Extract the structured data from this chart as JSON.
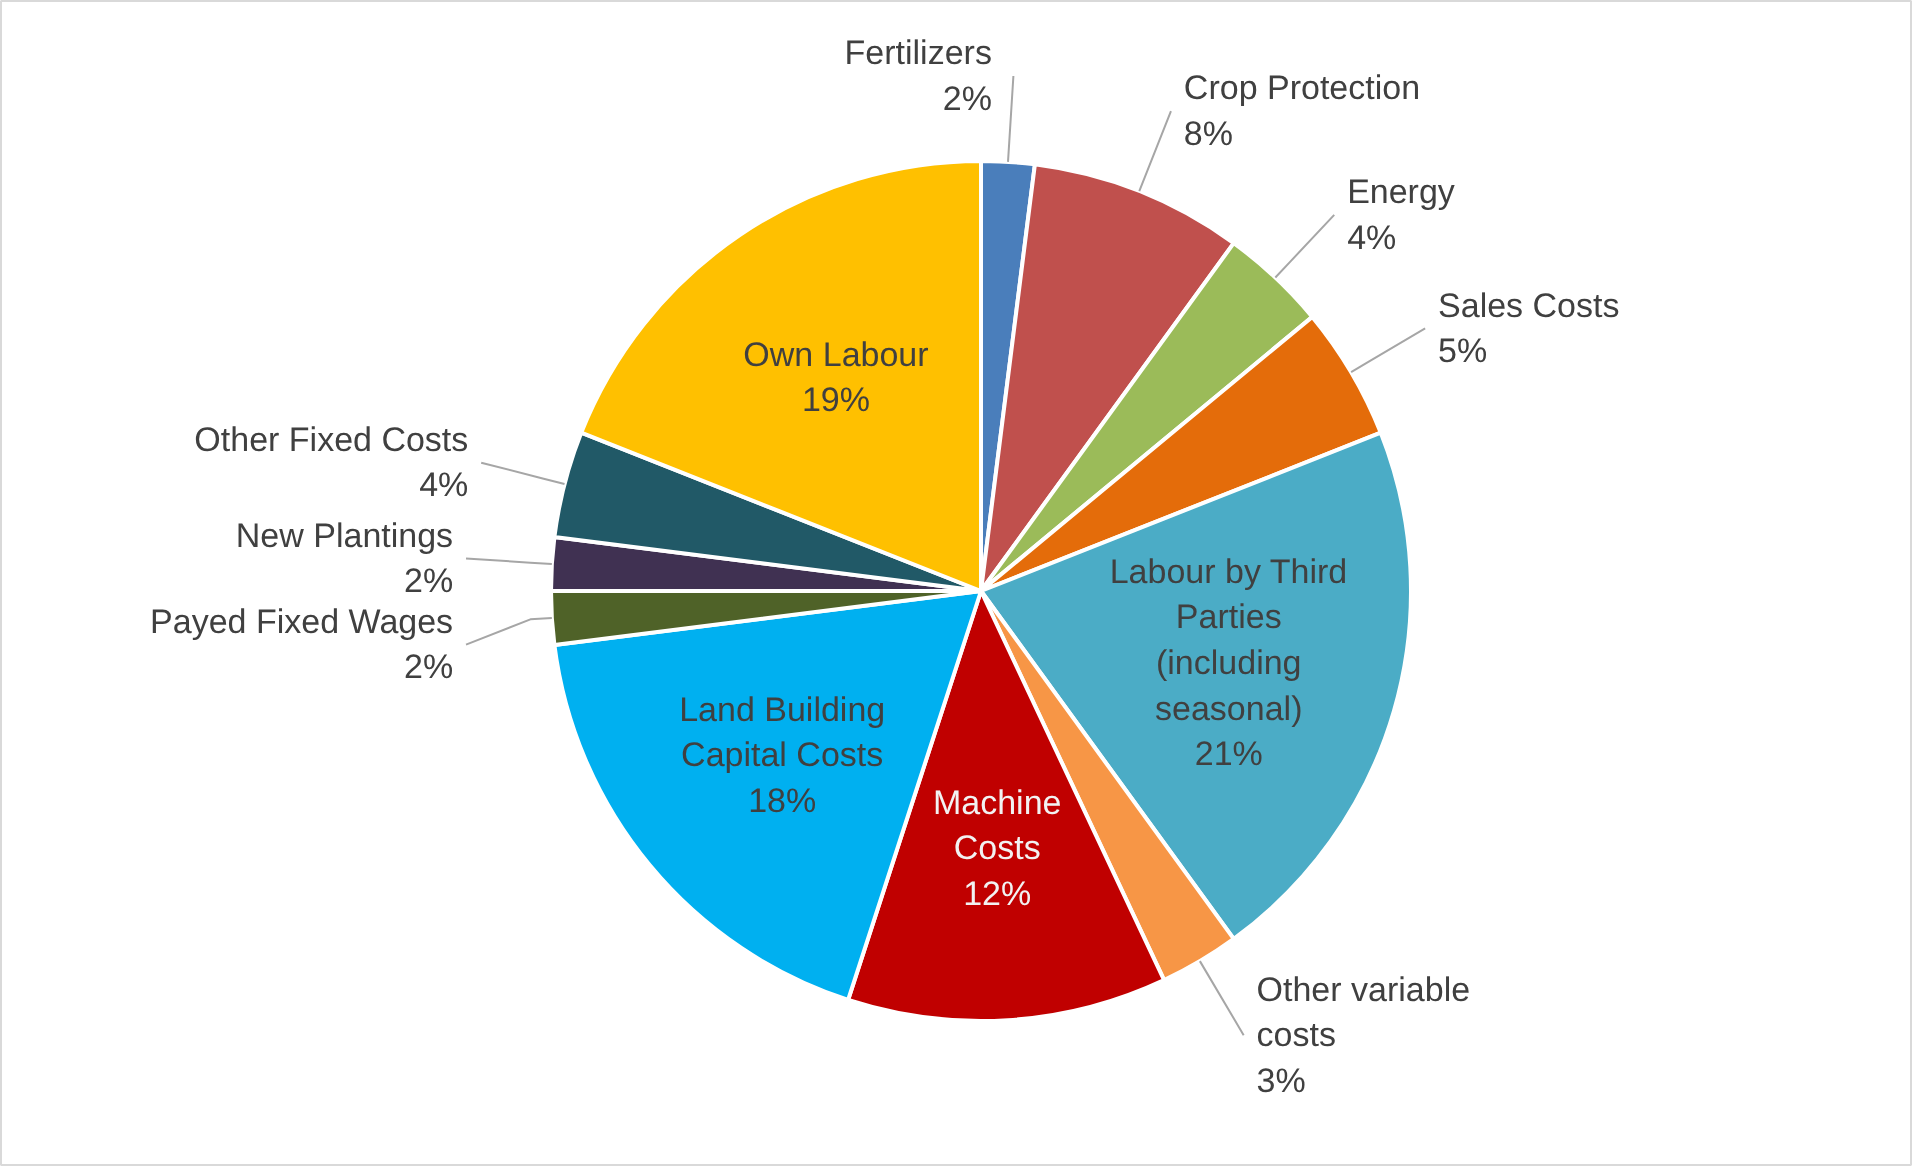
{
  "chart_data": {
    "type": "pie",
    "categories": [
      "Fertilizers",
      "Crop Protection",
      "Energy",
      "Sales Costs",
      "Labour by Third Parties (including seasonal)",
      "Other variable costs",
      "Machine Costs",
      "Land Building Capital Costs",
      "Payed Fixed Wages",
      "New Plantings",
      "Other Fixed Costs",
      "Own Labour"
    ],
    "values": [
      2,
      8,
      4,
      5,
      21,
      3,
      12,
      18,
      2,
      2,
      4,
      19
    ],
    "value_labels": [
      "2%",
      "8%",
      "4%",
      "5%",
      "21%",
      "3%",
      "12%",
      "18%",
      "2%",
      "2%",
      "4%",
      "19%"
    ],
    "colors": [
      "#4a7ebb",
      "#c0504d",
      "#9bbb59",
      "#e46c0a",
      "#4bacc6",
      "#f79646",
      "#c00000",
      "#00b0f0",
      "#4f6228",
      "#403152",
      "#215967",
      "#ffc000"
    ],
    "legend": false
  }
}
